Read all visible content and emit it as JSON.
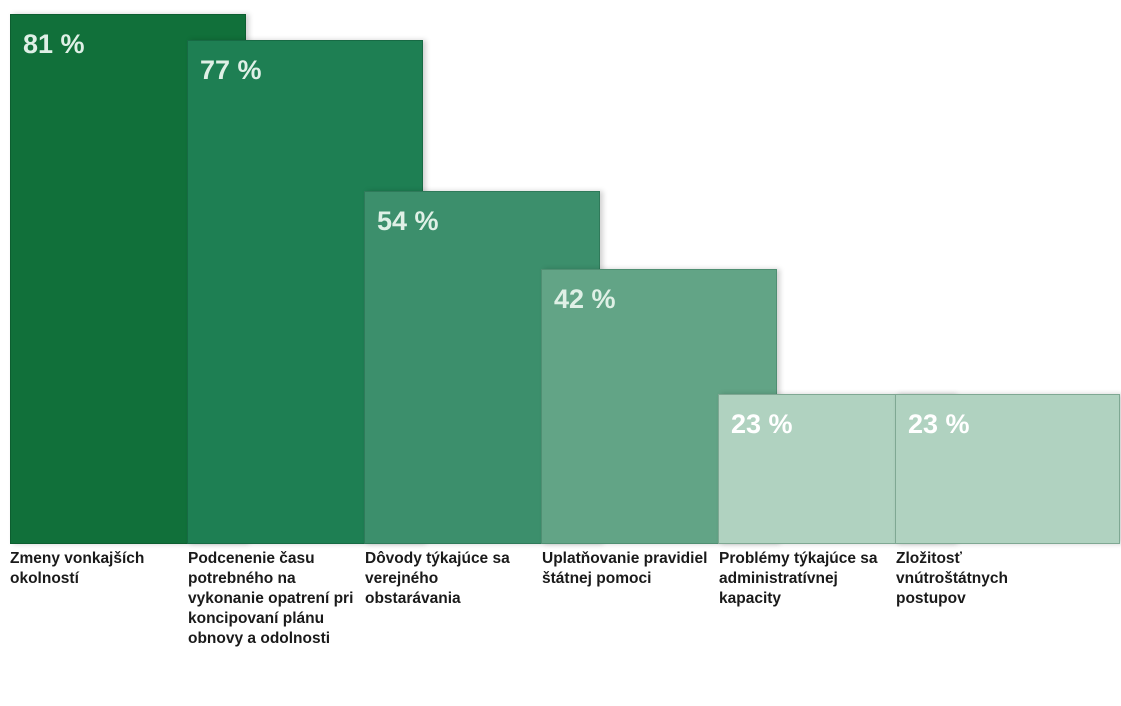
{
  "chart_data": {
    "type": "bar",
    "categories": [
      "Zmeny vonkajších okolností",
      "Podcenenie času potrebného na vykonanie opatrení pri koncipovaní plánu obnovy a odolnosti",
      "Dôvody týkajúce sa verejného obstarávania",
      "Uplatňovanie pravidiel štátnej pomoci",
      "Problémy týkajúce sa administratívnej kapacity",
      "Zložitosť vnútroštátnych postupov"
    ],
    "values": [
      81,
      77,
      54,
      42,
      23,
      23
    ],
    "value_labels": [
      "81 %",
      "77 %",
      "54 %",
      "42 %",
      "23 %",
      "23 %"
    ],
    "ylim": [
      0,
      81
    ],
    "grid": false,
    "legend": "none"
  },
  "colors": {
    "bars": [
      "#11703a",
      "#1e7f53",
      "#3c8f6c",
      "#62a486",
      "#b0d2c0",
      "#b0d2c0"
    ],
    "value_text": [
      "#dff0e6",
      "#dff0e6",
      "#dff0e6",
      "#dff0e6",
      "#ffffff",
      "#ffffff"
    ],
    "bar_borders": [
      "#0d5e30",
      "#176a44",
      "#2f7a5a",
      "#4f8f72",
      "#7fa893",
      "#7fa893"
    ]
  }
}
